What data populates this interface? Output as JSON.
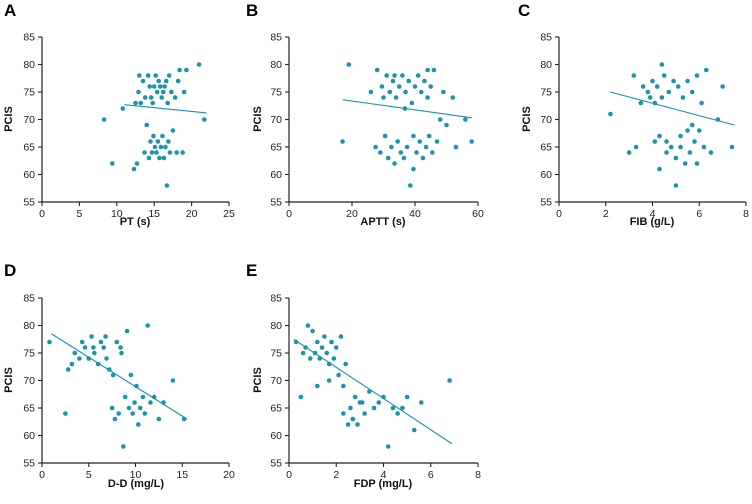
{
  "figure": {
    "point_color": "#1b93a8",
    "line_color": "#1b93a8",
    "axis_color": "#222222"
  },
  "chart_data": [
    {
      "type": "scatter",
      "panel": "A",
      "xlabel": "PT (s)",
      "ylabel": "PCIS",
      "xlim": [
        0,
        25
      ],
      "ylim": [
        55,
        85
      ],
      "xticks": [
        "0",
        "5",
        "10",
        "15",
        "20",
        "25"
      ],
      "yticks": [
        "55",
        "60",
        "65",
        "70",
        "75",
        "80",
        "85"
      ],
      "trendline": {
        "x": [
          11,
          22
        ],
        "y": [
          72.7,
          71.2
        ]
      },
      "points": [
        [
          8.3,
          70
        ],
        [
          9.4,
          62
        ],
        [
          10.8,
          72
        ],
        [
          12.3,
          61
        ],
        [
          12.5,
          73
        ],
        [
          12.7,
          62
        ],
        [
          12.9,
          75
        ],
        [
          13.0,
          78
        ],
        [
          13.2,
          73
        ],
        [
          13.5,
          77
        ],
        [
          13.7,
          64
        ],
        [
          13.8,
          74
        ],
        [
          14.0,
          69
        ],
        [
          14.2,
          78
        ],
        [
          14.3,
          63
        ],
        [
          14.4,
          76
        ],
        [
          14.5,
          66
        ],
        [
          14.6,
          74
        ],
        [
          14.7,
          64
        ],
        [
          14.8,
          73
        ],
        [
          14.9,
          67
        ],
        [
          15.0,
          76
        ],
        [
          15.1,
          65
        ],
        [
          15.2,
          78
        ],
        [
          15.3,
          64
        ],
        [
          15.4,
          75
        ],
        [
          15.5,
          66
        ],
        [
          15.6,
          77
        ],
        [
          15.7,
          63
        ],
        [
          15.8,
          76
        ],
        [
          15.9,
          65
        ],
        [
          16.0,
          74
        ],
        [
          16.1,
          67
        ],
        [
          16.2,
          75
        ],
        [
          16.3,
          63
        ],
        [
          16.4,
          76
        ],
        [
          16.5,
          65
        ],
        [
          16.6,
          77
        ],
        [
          16.7,
          58
        ],
        [
          16.8,
          73
        ],
        [
          16.9,
          66
        ],
        [
          17.0,
          78
        ],
        [
          17.1,
          64
        ],
        [
          17.3,
          75
        ],
        [
          17.5,
          68
        ],
        [
          17.8,
          74
        ],
        [
          18.0,
          64
        ],
        [
          18.2,
          77
        ],
        [
          18.4,
          79
        ],
        [
          18.8,
          64
        ],
        [
          19.0,
          75
        ],
        [
          19.3,
          79
        ],
        [
          21.0,
          80
        ],
        [
          21.7,
          70
        ]
      ]
    },
    {
      "type": "scatter",
      "panel": "B",
      "xlabel": "APTT (s)",
      "ylabel": "PCIS",
      "xlim": [
        0,
        60
      ],
      "ylim": [
        55,
        85
      ],
      "xticks": [
        "0",
        "20",
        "40",
        "60"
      ],
      "yticks": [
        "55",
        "60",
        "65",
        "70",
        "75",
        "80",
        "85"
      ],
      "trendline": {
        "x": [
          17,
          58
        ],
        "y": [
          73.6,
          70.3
        ]
      },
      "points": [
        [
          17.0,
          66
        ],
        [
          19.0,
          80
        ],
        [
          26.0,
          75
        ],
        [
          27.5,
          65
        ],
        [
          28.0,
          79
        ],
        [
          29.0,
          64
        ],
        [
          29.5,
          76
        ],
        [
          30.0,
          74
        ],
        [
          30.5,
          67
        ],
        [
          31.0,
          78
        ],
        [
          31.5,
          63
        ],
        [
          32.0,
          75
        ],
        [
          32.5,
          65
        ],
        [
          33.0,
          77
        ],
        [
          33.5,
          62
        ],
        [
          34.0,
          74
        ],
        [
          34.5,
          66
        ],
        [
          35.0,
          76
        ],
        [
          35.5,
          64
        ],
        [
          36.0,
          78
        ],
        [
          36.5,
          63
        ],
        [
          37.0,
          75
        ],
        [
          37.5,
          65
        ],
        [
          38.0,
          77
        ],
        [
          38.5,
          58
        ],
        [
          39.0,
          73
        ],
        [
          39.5,
          67
        ],
        [
          40.0,
          76
        ],
        [
          40.5,
          64
        ],
        [
          41.0,
          78
        ],
        [
          41.5,
          66
        ],
        [
          42.0,
          75
        ],
        [
          42.5,
          63
        ],
        [
          43.0,
          77
        ],
        [
          43.5,
          65
        ],
        [
          44.0,
          74
        ],
        [
          44.5,
          67
        ],
        [
          45.0,
          76
        ],
        [
          45.5,
          64
        ],
        [
          46.0,
          79
        ],
        [
          47.0,
          66
        ],
        [
          48.0,
          70
        ],
        [
          49.0,
          75
        ],
        [
          50.0,
          69
        ],
        [
          52.0,
          74
        ],
        [
          53.0,
          65
        ],
        [
          56.0,
          70
        ],
        [
          58.0,
          66
        ],
        [
          36.8,
          72
        ],
        [
          33.5,
          78
        ],
        [
          44.0,
          79
        ],
        [
          39.5,
          61
        ]
      ]
    },
    {
      "type": "scatter",
      "panel": "C",
      "xlabel": "FIB (g/L)",
      "ylabel": "PCIS",
      "xlim": [
        0,
        8
      ],
      "ylim": [
        55,
        85
      ],
      "xticks": [
        "0",
        "2",
        "4",
        "6",
        "8"
      ],
      "yticks": [
        "55",
        "60",
        "65",
        "70",
        "75",
        "80",
        "85"
      ],
      "trendline": {
        "x": [
          2.2,
          7.5
        ],
        "y": [
          75,
          69
        ]
      },
      "points": [
        [
          2.2,
          71
        ],
        [
          3.0,
          64
        ],
        [
          3.2,
          78
        ],
        [
          3.3,
          65
        ],
        [
          3.5,
          73
        ],
        [
          3.6,
          76
        ],
        [
          3.8,
          75
        ],
        [
          3.9,
          74
        ],
        [
          4.0,
          77
        ],
        [
          4.1,
          73
        ],
        [
          4.2,
          76
        ],
        [
          4.3,
          61
        ],
        [
          4.4,
          74
        ],
        [
          4.5,
          78
        ],
        [
          4.6,
          66
        ],
        [
          4.7,
          75
        ],
        [
          4.8,
          65
        ],
        [
          4.9,
          77
        ],
        [
          5.0,
          63
        ],
        [
          5.1,
          76
        ],
        [
          5.2,
          67
        ],
        [
          5.3,
          74
        ],
        [
          5.4,
          62
        ],
        [
          5.5,
          77
        ],
        [
          5.6,
          64
        ],
        [
          5.7,
          75
        ],
        [
          5.8,
          66
        ],
        [
          5.9,
          78
        ],
        [
          6.0,
          68
        ],
        [
          6.1,
          73
        ],
        [
          6.2,
          65
        ],
        [
          6.3,
          79
        ],
        [
          6.5,
          64
        ],
        [
          6.8,
          70
        ],
        [
          7.0,
          76
        ],
        [
          7.4,
          65
        ],
        [
          4.1,
          66
        ],
        [
          4.3,
          67
        ],
        [
          4.6,
          64
        ],
        [
          5.0,
          58
        ],
        [
          5.2,
          65
        ],
        [
          5.5,
          68
        ],
        [
          5.9,
          62
        ],
        [
          4.4,
          80
        ],
        [
          5.7,
          69
        ]
      ]
    },
    {
      "type": "scatter",
      "panel": "D",
      "xlabel": "D-D (mg/L)",
      "ylabel": "PCIS",
      "xlim": [
        0,
        20
      ],
      "ylim": [
        55,
        85
      ],
      "xticks": [
        "0",
        "5",
        "10",
        "15",
        "20"
      ],
      "yticks": [
        "55",
        "60",
        "65",
        "70",
        "75",
        "80",
        "85"
      ],
      "trendline": {
        "x": [
          1,
          15.5
        ],
        "y": [
          78.5,
          63
        ]
      },
      "points": [
        [
          0.8,
          77
        ],
        [
          2.5,
          64
        ],
        [
          2.8,
          72
        ],
        [
          3.2,
          73
        ],
        [
          3.5,
          75
        ],
        [
          4.0,
          74
        ],
        [
          4.3,
          77
        ],
        [
          4.6,
          76
        ],
        [
          5.0,
          74
        ],
        [
          5.3,
          78
        ],
        [
          5.6,
          75
        ],
        [
          6.0,
          73
        ],
        [
          6.3,
          77
        ],
        [
          6.6,
          76
        ],
        [
          6.9,
          74
        ],
        [
          7.2,
          72
        ],
        [
          7.5,
          65
        ],
        [
          7.8,
          63
        ],
        [
          8.0,
          77
        ],
        [
          8.2,
          64
        ],
        [
          8.5,
          75
        ],
        [
          8.7,
          58
        ],
        [
          8.9,
          67
        ],
        [
          9.1,
          79
        ],
        [
          9.3,
          65
        ],
        [
          9.5,
          71
        ],
        [
          9.7,
          64
        ],
        [
          9.9,
          66
        ],
        [
          10.1,
          69
        ],
        [
          10.3,
          62
        ],
        [
          10.5,
          65
        ],
        [
          10.8,
          67
        ],
        [
          11.0,
          64
        ],
        [
          11.3,
          80
        ],
        [
          11.6,
          66
        ],
        [
          12.0,
          67
        ],
        [
          12.5,
          63
        ],
        [
          13.0,
          66
        ],
        [
          14.0,
          70
        ],
        [
          15.2,
          63
        ],
        [
          5.5,
          76
        ],
        [
          6.8,
          78
        ],
        [
          7.6,
          71
        ],
        [
          8.4,
          76
        ]
      ]
    },
    {
      "type": "scatter",
      "panel": "E",
      "xlabel": "FDP (mg/L)",
      "ylabel": "PCIS",
      "xlim": [
        0,
        8
      ],
      "ylim": [
        55,
        85
      ],
      "xticks": [
        "0",
        "2",
        "4",
        "6",
        "8"
      ],
      "yticks": [
        "55",
        "60",
        "65",
        "70",
        "75",
        "80",
        "85"
      ],
      "trendline": {
        "x": [
          0.2,
          6.9
        ],
        "y": [
          77.5,
          58.5
        ]
      },
      "points": [
        [
          0.3,
          77
        ],
        [
          0.5,
          67
        ],
        [
          0.6,
          75
        ],
        [
          0.7,
          76
        ],
        [
          0.8,
          80
        ],
        [
          0.9,
          74
        ],
        [
          1.0,
          79
        ],
        [
          1.1,
          75
        ],
        [
          1.2,
          77
        ],
        [
          1.3,
          74
        ],
        [
          1.4,
          76
        ],
        [
          1.5,
          78
        ],
        [
          1.6,
          75
        ],
        [
          1.7,
          73
        ],
        [
          1.8,
          77
        ],
        [
          1.9,
          74
        ],
        [
          2.0,
          76
        ],
        [
          2.1,
          71
        ],
        [
          2.2,
          78
        ],
        [
          2.3,
          64
        ],
        [
          2.4,
          73
        ],
        [
          2.5,
          62
        ],
        [
          2.6,
          65
        ],
        [
          2.7,
          63
        ],
        [
          2.8,
          67
        ],
        [
          2.9,
          62
        ],
        [
          3.0,
          66
        ],
        [
          3.2,
          64
        ],
        [
          3.4,
          68
        ],
        [
          3.6,
          65
        ],
        [
          3.8,
          66
        ],
        [
          4.0,
          67
        ],
        [
          4.2,
          58
        ],
        [
          4.4,
          65
        ],
        [
          4.6,
          64
        ],
        [
          4.8,
          65
        ],
        [
          5.0,
          67
        ],
        [
          5.3,
          61
        ],
        [
          5.6,
          66
        ],
        [
          6.8,
          70
        ],
        [
          1.2,
          69
        ],
        [
          1.7,
          70
        ],
        [
          2.3,
          69
        ],
        [
          3.1,
          66
        ]
      ]
    }
  ]
}
